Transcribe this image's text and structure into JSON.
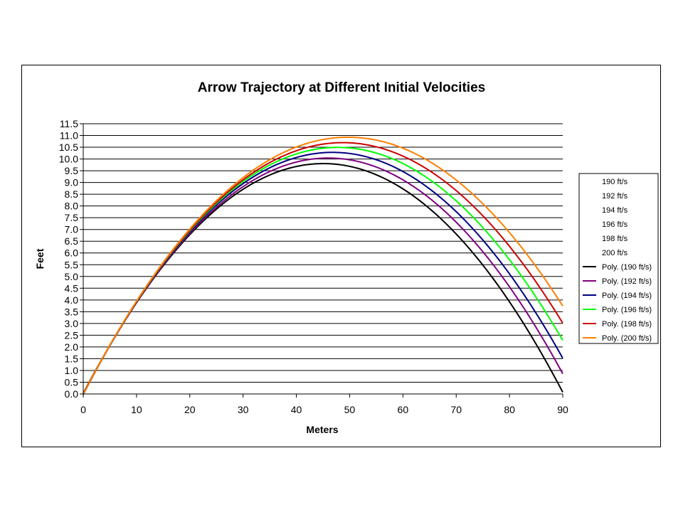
{
  "chart_data": {
    "type": "line",
    "title": "Arrow Trajectory at Different Initial Velocities",
    "xlabel": "Meters",
    "ylabel": "Feet",
    "xlim": [
      0,
      90
    ],
    "ylim": [
      0,
      11.5
    ],
    "x_ticks": [
      "0",
      "10",
      "20",
      "30",
      "40",
      "50",
      "60",
      "70",
      "80",
      "90"
    ],
    "y_ticks": [
      "0.0",
      "0.5",
      "1.0",
      "1.5",
      "2.0",
      "2.5",
      "3.0",
      "3.5",
      "4.0",
      "4.5",
      "5.0",
      "5.5",
      "6.0",
      "6.5",
      "7.0",
      "7.5",
      "8.0",
      "8.5",
      "9.0",
      "9.5",
      "10.0",
      "10.5",
      "11.0",
      "11.5"
    ],
    "grid": "horizontal",
    "legend_position": "right",
    "x": [
      0,
      10,
      20,
      30,
      40,
      45,
      50,
      60,
      70,
      80,
      90
    ],
    "series": [
      {
        "name": "Poly. (190 ft/s)",
        "color": "#000000",
        "values": [
          0.0,
          3.9,
          6.8,
          8.7,
          9.7,
          9.8,
          9.7,
          8.7,
          6.8,
          3.9,
          0.1
        ]
      },
      {
        "name": "Poly. (192 ft/s)",
        "color": "#800080",
        "values": [
          0.0,
          3.9,
          6.8,
          8.8,
          9.9,
          10.05,
          10.0,
          9.1,
          7.3,
          4.5,
          0.9
        ]
      },
      {
        "name": "Poly. (194 ft/s)",
        "color": "#000080",
        "values": [
          0.0,
          3.9,
          6.85,
          8.9,
          10.1,
          10.3,
          10.3,
          9.5,
          7.7,
          5.0,
          1.6
        ]
      },
      {
        "name": "Poly. (196 ft/s)",
        "color": "#00ff00",
        "values": [
          0.0,
          3.9,
          6.9,
          9.0,
          10.3,
          10.5,
          10.55,
          9.8,
          8.1,
          5.6,
          2.4
        ]
      },
      {
        "name": "Poly. (198 ft/s)",
        "color": "#cc0000",
        "values": [
          0.0,
          3.9,
          6.9,
          9.1,
          10.5,
          10.7,
          10.75,
          10.1,
          8.5,
          6.1,
          3.2
        ]
      },
      {
        "name": "Poly. (200 ft/s)",
        "color": "#ff8000",
        "values": [
          0.0,
          3.9,
          7.0,
          9.2,
          10.6,
          10.9,
          10.95,
          10.45,
          9.0,
          6.7,
          3.9
        ]
      }
    ],
    "legend_entries": [
      {
        "label": "190 ft/s",
        "color": ""
      },
      {
        "label": "192 ft/s",
        "color": ""
      },
      {
        "label": "194 ft/s",
        "color": ""
      },
      {
        "label": "196 ft/s",
        "color": ""
      },
      {
        "label": "198 ft/s",
        "color": ""
      },
      {
        "label": "200 ft/s",
        "color": ""
      },
      {
        "label": "Poly. (190 ft/s)",
        "color": "#000000"
      },
      {
        "label": "Poly. (192 ft/s)",
        "color": "#800080"
      },
      {
        "label": "Poly. (194 ft/s)",
        "color": "#000080"
      },
      {
        "label": "Poly. (196 ft/s)",
        "color": "#00ff00"
      },
      {
        "label": "Poly. (198 ft/s)",
        "color": "#cc0000"
      },
      {
        "label": "Poly. (200 ft/s)",
        "color": "#ff8000"
      }
    ]
  }
}
